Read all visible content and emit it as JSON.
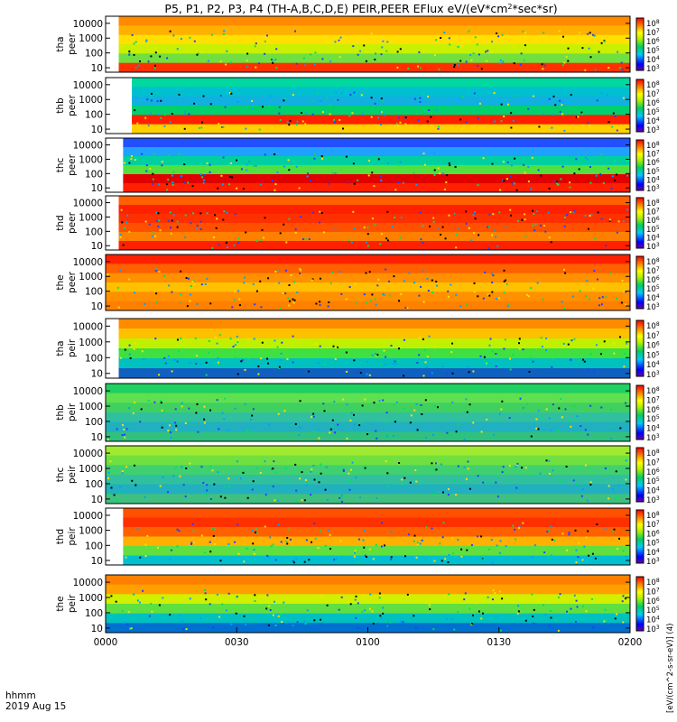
{
  "chart_data": {
    "type": "heatmap",
    "title": "P5, P1, P2, P3, P4 (TH-A,B,C,D,E) PEIR,PEER EFlux eV/(eV*cm",
    "title_sup": "2",
    "title_end": "*sec*sr)",
    "time_ticks": [
      "0000",
      "0030",
      "0100",
      "0130",
      "0200"
    ],
    "time_label": "hhmm",
    "date_label": "2019 Aug 15",
    "ytick_labels": [
      "10000",
      "1000",
      "100",
      "10"
    ],
    "colorbar_ticks": [
      "10",
      "10",
      "10",
      "10",
      "10",
      "10"
    ],
    "colorbar_exps": [
      "8",
      "7",
      "6",
      "5",
      "4",
      "3"
    ],
    "colorbar_unit": "[eV/(cm^2-s-sr-eV)] (4)",
    "panels": [
      {
        "probe": "tha",
        "species": "peer",
        "energy_ylim": [
          5,
          30000
        ],
        "x_start_hhmm": "0003"
      },
      {
        "probe": "thb",
        "species": "peer",
        "energy_ylim": [
          5,
          30000
        ],
        "x_start_hhmm": "0006"
      },
      {
        "probe": "thc",
        "species": "peer",
        "energy_ylim": [
          5,
          30000
        ],
        "x_start_hhmm": "0004"
      },
      {
        "probe": "thd",
        "species": "peer",
        "energy_ylim": [
          5,
          30000
        ],
        "x_start_hhmm": "0003"
      },
      {
        "probe": "the",
        "species": "peer",
        "energy_ylim": [
          5,
          30000
        ],
        "x_start_hhmm": "0000"
      },
      {
        "probe": "tha",
        "species": "peir",
        "energy_ylim": [
          5,
          30000
        ],
        "x_start_hhmm": "0003"
      },
      {
        "probe": "thb",
        "species": "peir",
        "energy_ylim": [
          5,
          30000
        ],
        "x_start_hhmm": "0000"
      },
      {
        "probe": "thc",
        "species": "peir",
        "energy_ylim": [
          5,
          30000
        ],
        "x_start_hhmm": "0000"
      },
      {
        "probe": "thd",
        "species": "peir",
        "energy_ylim": [
          5,
          30000
        ],
        "x_start_hhmm": "0004"
      },
      {
        "probe": "the",
        "species": "peir",
        "energy_ylim": [
          5,
          30000
        ],
        "x_start_hhmm": "0000"
      }
    ]
  }
}
